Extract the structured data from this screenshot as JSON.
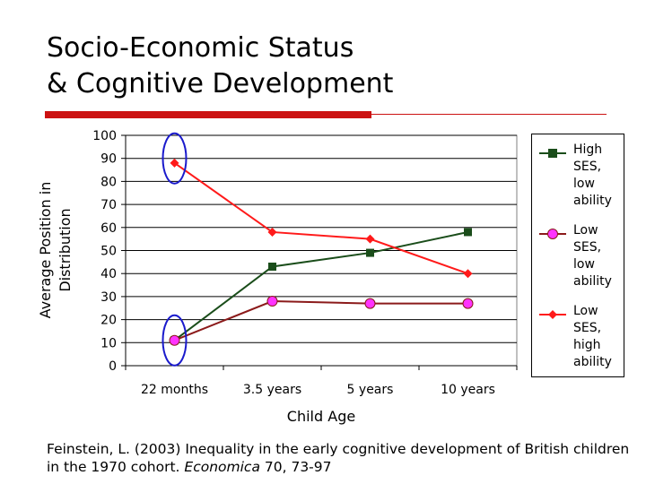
{
  "slide": {
    "title_line1": "Socio-Economic Status",
    "title_line2": "& Cognitive Development"
  },
  "footnote": {
    "text_before": "Feinstein, L. (2003) Inequality in the early cognitive development of British children in the 1970 cohort. ",
    "journal": "Economica",
    "text_after": " 70, 73-97"
  },
  "colors": {
    "title_rule": "#cc1111",
    "high_ses_low_ability": "#1a4d1a",
    "low_ses_low_ability": "#8b1a1a",
    "low_ses_high_ability": "#ff1a1a",
    "highlight_ellipse": "#1a1acc"
  },
  "chart_data": {
    "type": "line",
    "title": "",
    "xlabel": "Child Age",
    "ylabel": "Average Position in Distribution",
    "categories": [
      "22 months",
      "3.5 years",
      "5 years",
      "10 years"
    ],
    "ylim": [
      0,
      100
    ],
    "yticks": [
      0,
      10,
      20,
      30,
      40,
      50,
      60,
      70,
      80,
      90,
      100
    ],
    "grid": "horizontal",
    "legend_position": "right",
    "series": [
      {
        "name": "High SES, low ability",
        "marker": "square",
        "values": [
          11,
          43,
          49,
          58
        ]
      },
      {
        "name": "Low SES, low ability",
        "marker": "circle",
        "values": [
          11,
          28,
          27,
          27
        ]
      },
      {
        "name": "Low SES, high ability",
        "marker": "diamond",
        "values": [
          88,
          58,
          55,
          40
        ]
      }
    ],
    "annotations": [
      {
        "shape": "ellipse",
        "category": "22 months",
        "value": 90
      },
      {
        "shape": "ellipse",
        "category": "22 months",
        "value": 11
      }
    ]
  }
}
